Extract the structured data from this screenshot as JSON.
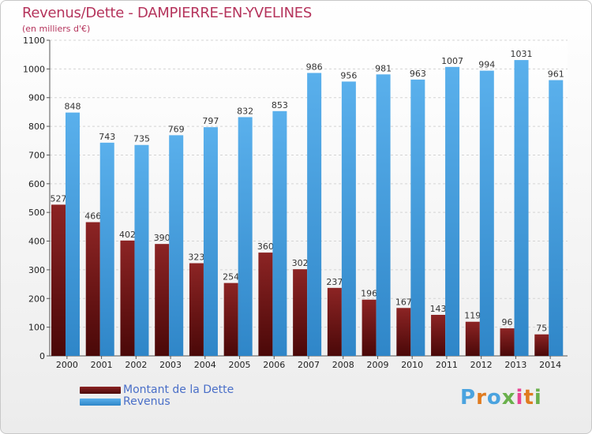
{
  "title": "Revenus/Dette - DAMPIERRE-EN-YVELINES",
  "subtitle": "(en milliers d'€)",
  "brand": "Proxiti",
  "colors": {
    "dette": "#7a1a1a",
    "revenus": "#4aa3e6",
    "title": "#b5345c"
  },
  "legend": [
    {
      "label": "Montant de la Dette",
      "color": "#7a1a1a"
    },
    {
      "label": "Revenus",
      "color": "#4aa3e6"
    }
  ],
  "chart_data": {
    "type": "bar",
    "title": "Revenus/Dette - DAMPIERRE-EN-YVELINES",
    "subtitle": "(en milliers d'€)",
    "categories": [
      "2000",
      "2001",
      "2002",
      "2003",
      "2004",
      "2005",
      "2006",
      "2007",
      "2008",
      "2009",
      "2010",
      "2011",
      "2012",
      "2013",
      "2014"
    ],
    "series": [
      {
        "name": "Montant de la Dette",
        "values": [
          527,
          466,
          402,
          390,
          323,
          254,
          360,
          302,
          237,
          196,
          167,
          143,
          119,
          96,
          75
        ]
      },
      {
        "name": "Revenus",
        "values": [
          848,
          743,
          735,
          769,
          797,
          832,
          853,
          986,
          956,
          981,
          963,
          1007,
          994,
          1031,
          961
        ]
      }
    ],
    "ylim": [
      0,
      1100
    ],
    "yticks": [
      0,
      100,
      200,
      300,
      400,
      500,
      600,
      700,
      800,
      900,
      1000,
      1100
    ],
    "grid": true,
    "legend_position": "bottom-left"
  }
}
